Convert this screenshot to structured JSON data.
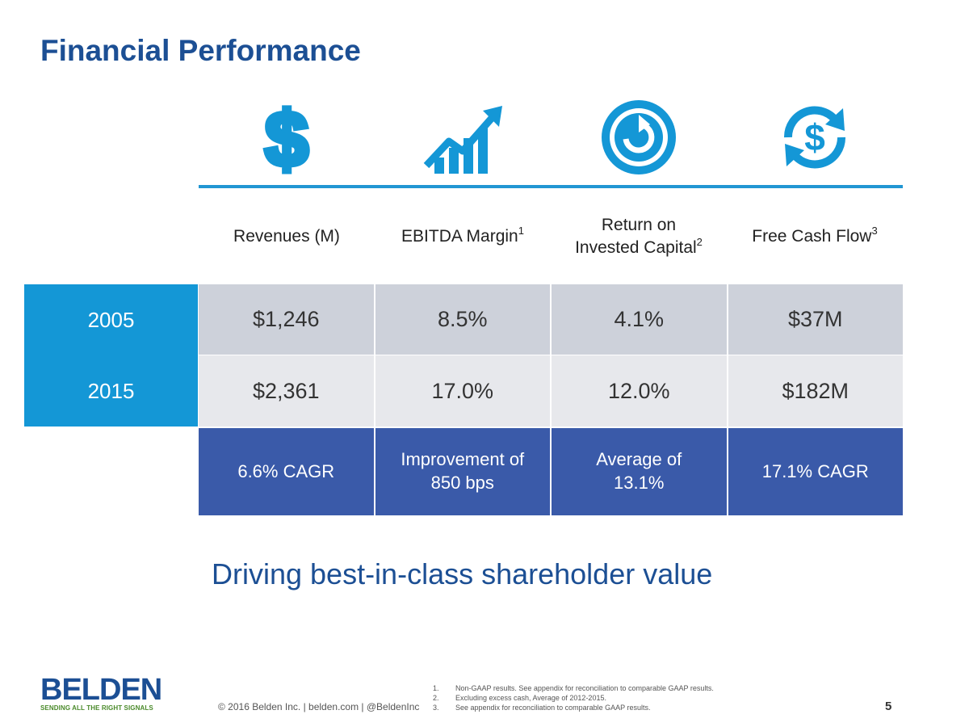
{
  "title": "Financial Performance",
  "icons": [
    "dollar-icon",
    "growth-chart-icon",
    "refresh-icon",
    "cash-cycle-icon"
  ],
  "accent_color": "#1497d6",
  "brand_color": "#1c4f94",
  "headers": [
    {
      "label": "Revenues (M)",
      "sup": ""
    },
    {
      "label": "EBITDA Margin",
      "sup": "1"
    },
    {
      "label_line1": "Return on",
      "label_line2": "Invested Capital",
      "sup": "2"
    },
    {
      "label": "Free Cash Flow",
      "sup": "3"
    }
  ],
  "rows": [
    {
      "year": "2005",
      "values": [
        "$1,246",
        "8.5%",
        "4.1%",
        "$37M"
      ]
    },
    {
      "year": "2015",
      "values": [
        "$2,361",
        "17.0%",
        "12.0%",
        "$182M"
      ]
    }
  ],
  "summary": [
    {
      "line1": "6.6% CAGR",
      "line2": ""
    },
    {
      "line1": "Improvement of",
      "line2": "850 bps"
    },
    {
      "line1": "Average of",
      "line2": "13.1%"
    },
    {
      "line1": "17.1% CAGR",
      "line2": ""
    }
  ],
  "tagline": "Driving best-in-class shareholder value",
  "logo": {
    "word": "BELDEN",
    "tagline": "SENDING ALL THE RIGHT SIGNALS"
  },
  "copyright": "© 2016 Belden Inc. | belden.com | @BeldenInc",
  "footnotes": [
    {
      "num": "1.",
      "text": "Non-GAAP results. See appendix for reconciliation to comparable GAAP results."
    },
    {
      "num": "2.",
      "text": "Excluding excess cash, Average of 2012-2015."
    },
    {
      "num": "3.",
      "text": "See appendix for reconciliation to comparable GAAP results."
    }
  ],
  "page_number": "5"
}
